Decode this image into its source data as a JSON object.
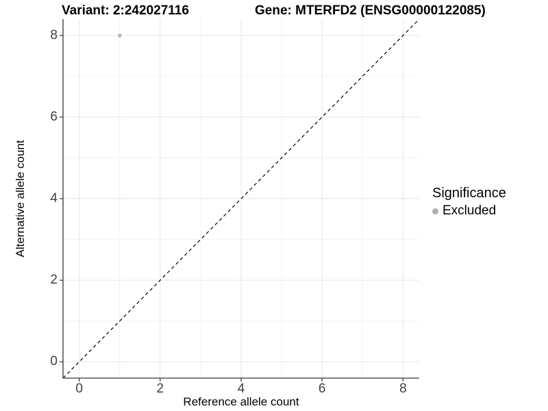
{
  "titles": {
    "variant": "Variant: 2:242027116",
    "gene": "Gene: MTERFD2 (ENSG00000122085)"
  },
  "chart_data": {
    "type": "scatter",
    "xlabel": "Reference allele count",
    "ylabel": "Alternative allele count",
    "xlim": [
      -0.4,
      8.4
    ],
    "ylim": [
      -0.4,
      8.4
    ],
    "x_ticks": [
      0,
      2,
      4,
      6,
      8
    ],
    "y_ticks": [
      0,
      2,
      4,
      6,
      8
    ],
    "x_minor_ticks": [
      1,
      3,
      5,
      7
    ],
    "y_minor_ticks": [
      1,
      3,
      5,
      7
    ],
    "grid": "major-and-minor",
    "series": [
      {
        "name": "Excluded",
        "points": [
          {
            "x": 1,
            "y": 8
          }
        ],
        "color": "#bcbcbc"
      }
    ],
    "identity_line": {
      "type": "abline",
      "slope": 1,
      "intercept": 0,
      "style": "dashed",
      "color": "#000000"
    },
    "legend": {
      "position": "right",
      "title": "Significance",
      "items": [
        {
          "label": "Excluded",
          "color": "#b0b0b0"
        }
      ]
    },
    "colors": {
      "grid_major": "#e6e6e6",
      "grid_minor": "#f3f3f3",
      "axis_line": "#333333",
      "tick_mark": "#333333",
      "tick_text": "#404040",
      "panel_bg": "#ffffff"
    }
  }
}
